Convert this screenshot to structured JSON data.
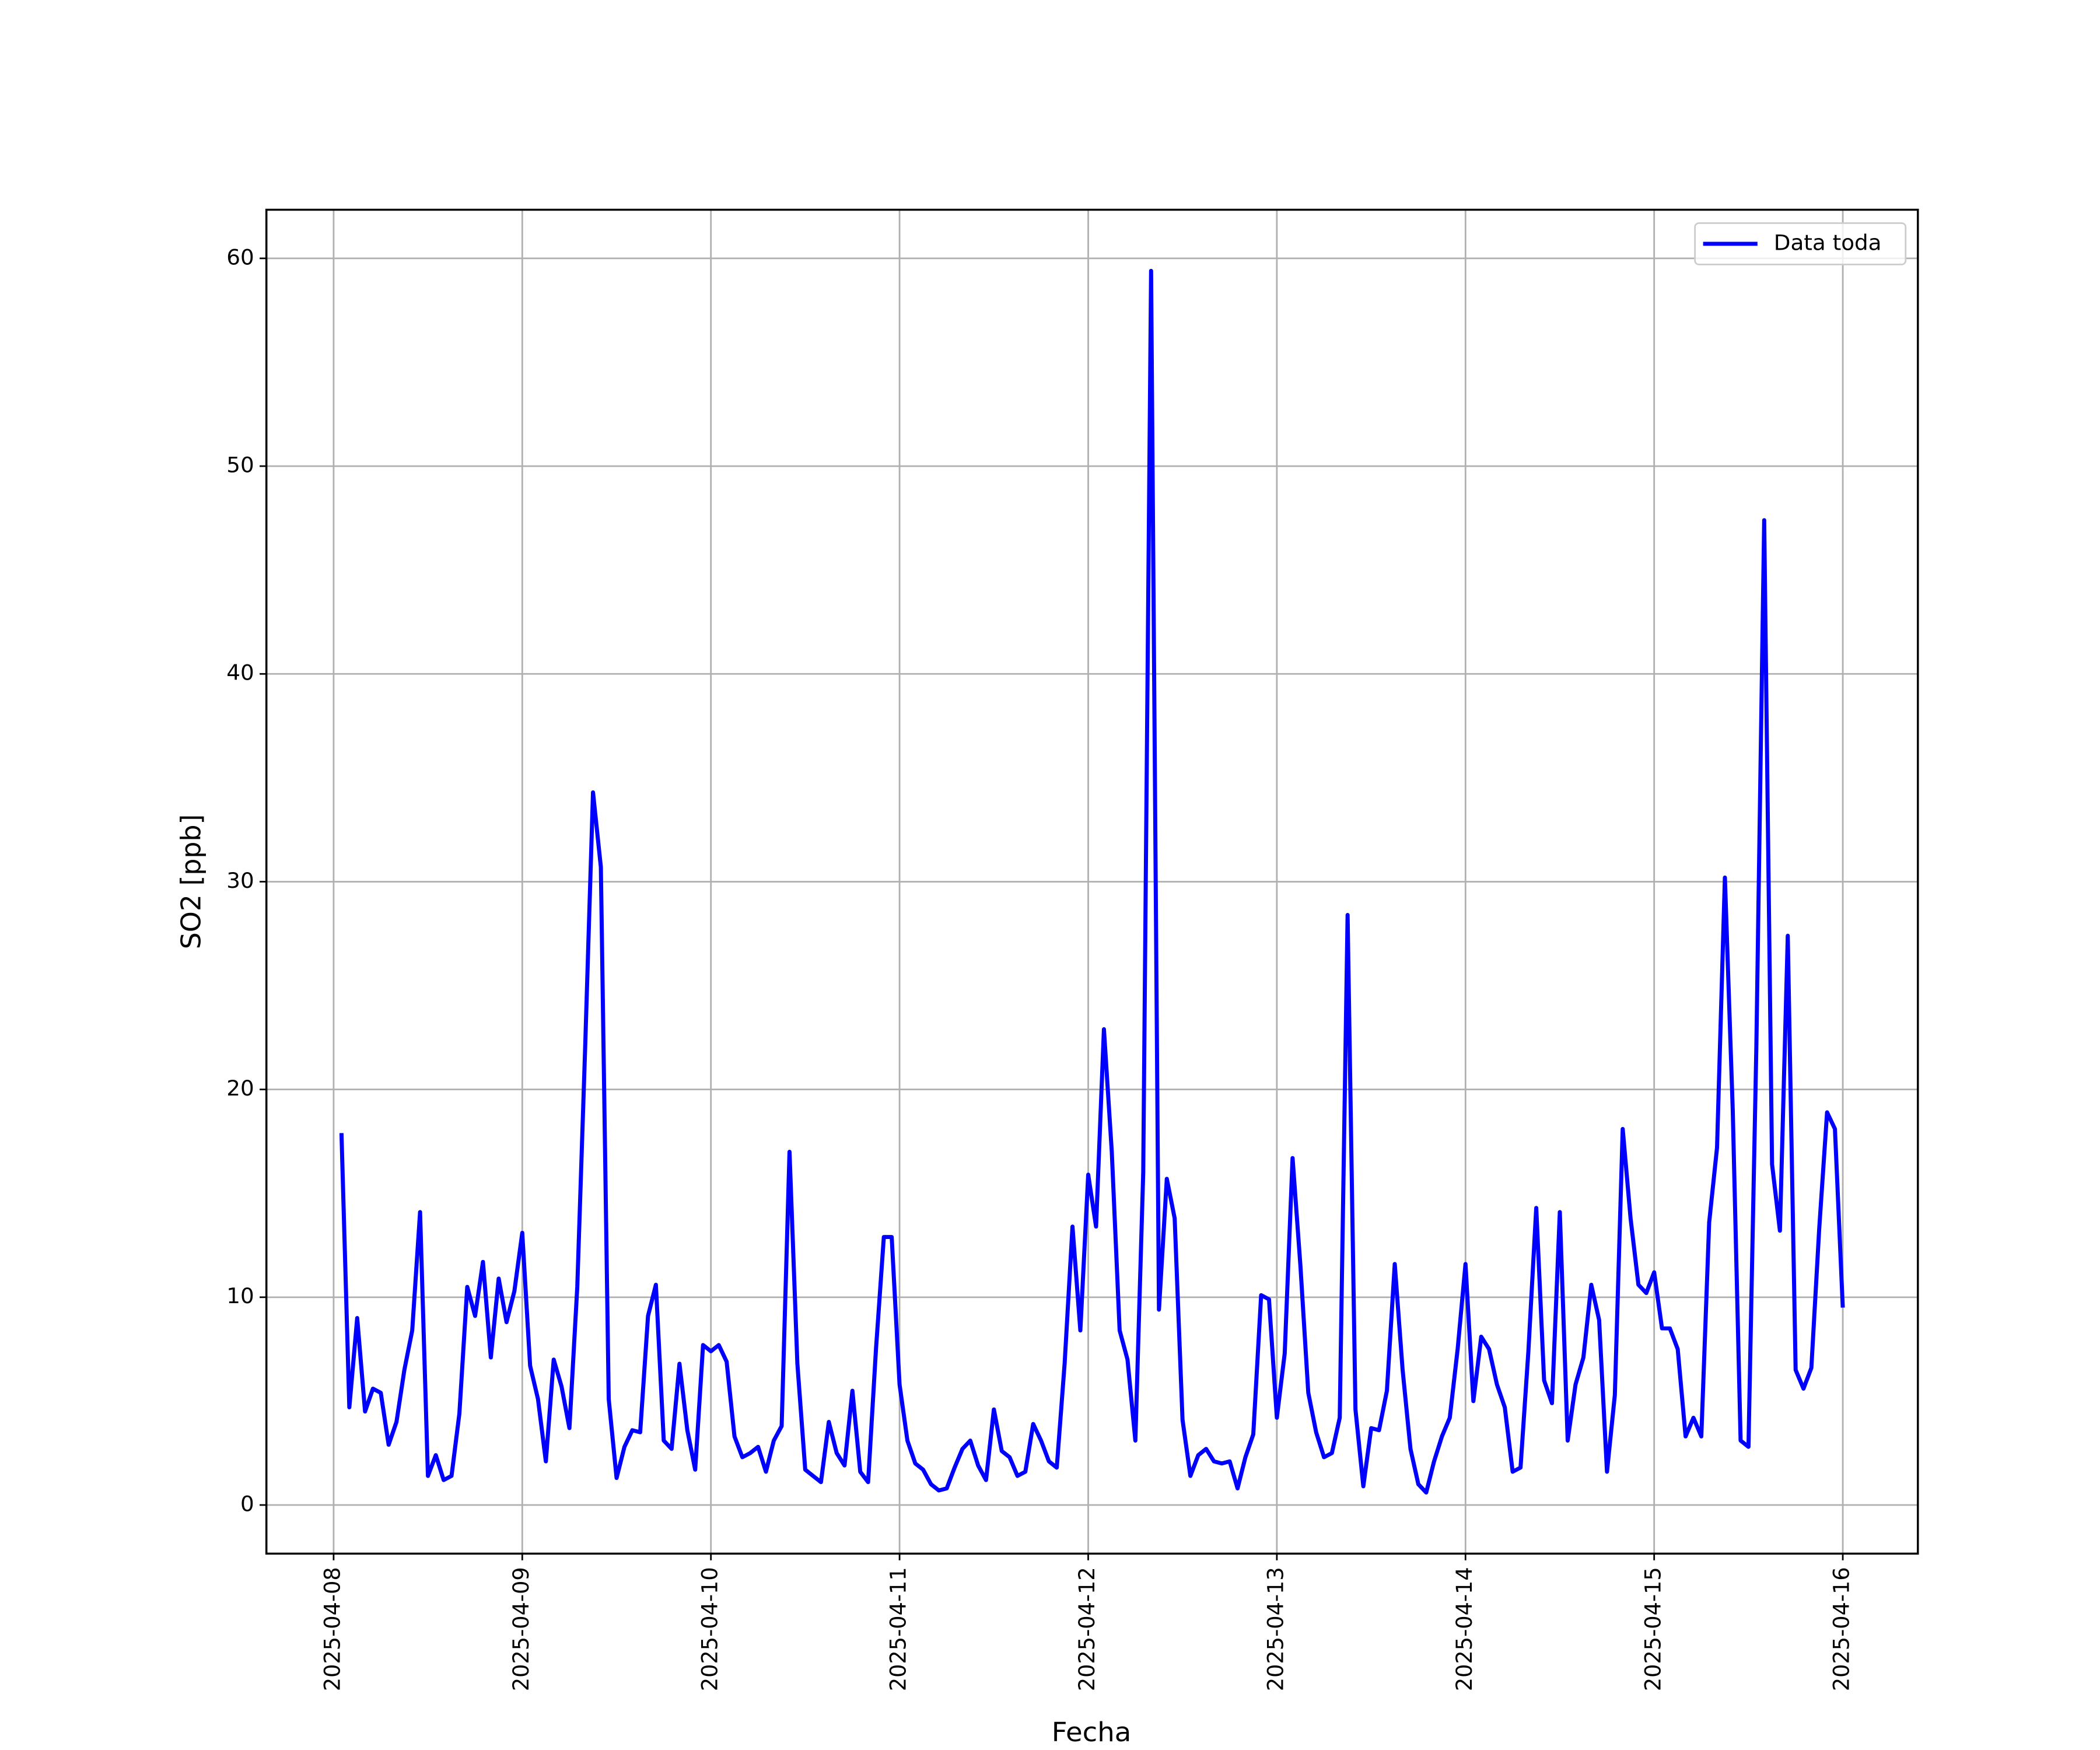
{
  "chart_data": {
    "type": "line",
    "xlabel": "Fecha",
    "ylabel": "SO2 [ppb]",
    "x": [
      "2025-04-08 01:00",
      "2025-04-08 02:00",
      "2025-04-08 03:00",
      "2025-04-08 04:00",
      "2025-04-08 05:00",
      "2025-04-08 06:00",
      "2025-04-08 07:00",
      "2025-04-08 08:00",
      "2025-04-08 09:00",
      "2025-04-08 10:00",
      "2025-04-08 11:00",
      "2025-04-08 12:00",
      "2025-04-08 13:00",
      "2025-04-08 14:00",
      "2025-04-08 15:00",
      "2025-04-08 16:00",
      "2025-04-08 17:00",
      "2025-04-08 18:00",
      "2025-04-08 19:00",
      "2025-04-08 20:00",
      "2025-04-08 21:00",
      "2025-04-08 22:00",
      "2025-04-08 23:00",
      "2025-04-09 00:00",
      "2025-04-09 01:00",
      "2025-04-09 02:00",
      "2025-04-09 03:00",
      "2025-04-09 04:00",
      "2025-04-09 05:00",
      "2025-04-09 06:00",
      "2025-04-09 07:00",
      "2025-04-09 08:00",
      "2025-04-09 09:00",
      "2025-04-09 10:00",
      "2025-04-09 11:00",
      "2025-04-09 12:00",
      "2025-04-09 13:00",
      "2025-04-09 14:00",
      "2025-04-09 15:00",
      "2025-04-09 16:00",
      "2025-04-09 17:00",
      "2025-04-09 18:00",
      "2025-04-09 19:00",
      "2025-04-09 20:00",
      "2025-04-09 21:00",
      "2025-04-09 22:00",
      "2025-04-09 23:00",
      "2025-04-10 00:00",
      "2025-04-10 01:00",
      "2025-04-10 02:00",
      "2025-04-10 03:00",
      "2025-04-10 04:00",
      "2025-04-10 05:00",
      "2025-04-10 06:00",
      "2025-04-10 07:00",
      "2025-04-10 08:00",
      "2025-04-10 09:00",
      "2025-04-10 10:00",
      "2025-04-10 11:00",
      "2025-04-10 12:00",
      "2025-04-10 13:00",
      "2025-04-10 14:00",
      "2025-04-10 15:00",
      "2025-04-10 16:00",
      "2025-04-10 17:00",
      "2025-04-10 18:00",
      "2025-04-10 19:00",
      "2025-04-10 20:00",
      "2025-04-10 21:00",
      "2025-04-10 22:00",
      "2025-04-10 23:00",
      "2025-04-11 00:00",
      "2025-04-11 01:00",
      "2025-04-11 02:00",
      "2025-04-11 03:00",
      "2025-04-11 04:00",
      "2025-04-11 05:00",
      "2025-04-11 06:00",
      "2025-04-11 07:00",
      "2025-04-11 08:00",
      "2025-04-11 09:00",
      "2025-04-11 10:00",
      "2025-04-11 11:00",
      "2025-04-11 12:00",
      "2025-04-11 13:00",
      "2025-04-11 14:00",
      "2025-04-11 15:00",
      "2025-04-11 16:00",
      "2025-04-11 17:00",
      "2025-04-11 18:00",
      "2025-04-11 19:00",
      "2025-04-11 20:00",
      "2025-04-11 21:00",
      "2025-04-11 22:00",
      "2025-04-11 23:00",
      "2025-04-12 00:00",
      "2025-04-12 01:00",
      "2025-04-12 02:00",
      "2025-04-12 03:00",
      "2025-04-12 04:00",
      "2025-04-12 05:00",
      "2025-04-12 06:00",
      "2025-04-12 07:00",
      "2025-04-12 08:00",
      "2025-04-12 09:00",
      "2025-04-12 10:00",
      "2025-04-12 11:00",
      "2025-04-12 12:00",
      "2025-04-12 13:00",
      "2025-04-12 14:00",
      "2025-04-12 15:00",
      "2025-04-12 16:00",
      "2025-04-12 17:00",
      "2025-04-12 18:00",
      "2025-04-12 19:00",
      "2025-04-12 20:00",
      "2025-04-12 21:00",
      "2025-04-12 22:00",
      "2025-04-12 23:00",
      "2025-04-13 00:00",
      "2025-04-13 01:00",
      "2025-04-13 02:00",
      "2025-04-13 03:00",
      "2025-04-13 04:00",
      "2025-04-13 05:00",
      "2025-04-13 06:00",
      "2025-04-13 07:00",
      "2025-04-13 08:00",
      "2025-04-13 09:00",
      "2025-04-13 10:00",
      "2025-04-13 11:00",
      "2025-04-13 12:00",
      "2025-04-13 13:00",
      "2025-04-13 14:00",
      "2025-04-13 15:00",
      "2025-04-13 16:00",
      "2025-04-13 17:00",
      "2025-04-13 18:00",
      "2025-04-13 19:00",
      "2025-04-13 20:00",
      "2025-04-13 21:00",
      "2025-04-13 22:00",
      "2025-04-13 23:00",
      "2025-04-14 00:00",
      "2025-04-14 01:00",
      "2025-04-14 02:00",
      "2025-04-14 03:00",
      "2025-04-14 04:00",
      "2025-04-14 05:00",
      "2025-04-14 06:00",
      "2025-04-14 07:00",
      "2025-04-14 08:00",
      "2025-04-14 09:00",
      "2025-04-14 10:00",
      "2025-04-14 11:00",
      "2025-04-14 12:00",
      "2025-04-14 13:00",
      "2025-04-14 14:00",
      "2025-04-14 15:00",
      "2025-04-14 16:00",
      "2025-04-14 17:00",
      "2025-04-14 18:00",
      "2025-04-14 19:00",
      "2025-04-14 20:00",
      "2025-04-14 21:00",
      "2025-04-14 22:00",
      "2025-04-14 23:00",
      "2025-04-15 00:00",
      "2025-04-15 01:00",
      "2025-04-15 02:00",
      "2025-04-15 03:00",
      "2025-04-15 04:00",
      "2025-04-15 05:00",
      "2025-04-15 06:00",
      "2025-04-15 07:00",
      "2025-04-15 08:00",
      "2025-04-15 09:00",
      "2025-04-15 10:00",
      "2025-04-15 11:00",
      "2025-04-15 12:00",
      "2025-04-15 13:00",
      "2025-04-15 14:00",
      "2025-04-15 15:00",
      "2025-04-15 16:00",
      "2025-04-15 17:00",
      "2025-04-15 18:00",
      "2025-04-15 19:00",
      "2025-04-15 20:00",
      "2025-04-15 21:00",
      "2025-04-15 22:00",
      "2025-04-15 23:00",
      "2025-04-16 00:00"
    ],
    "series": [
      {
        "name": "Data toda",
        "color": "#0000ff",
        "values": [
          17.9,
          4.7,
          9.0,
          4.5,
          5.6,
          5.4,
          2.9,
          4.0,
          6.5,
          8.4,
          14.1,
          1.4,
          2.4,
          1.2,
          1.4,
          4.4,
          10.5,
          9.1,
          11.7,
          7.1,
          10.9,
          8.8,
          10.3,
          13.1,
          6.7,
          5.1,
          2.1,
          7.0,
          5.7,
          3.7,
          10.5,
          22,
          34.3,
          30.7,
          5.1,
          1.3,
          2.8,
          3.6,
          3.5,
          9.1,
          10.6,
          3.1,
          2.7,
          6.8,
          3.6,
          1.7,
          7.7,
          7.4,
          7.7,
          6.9,
          3.3,
          2.3,
          2.5,
          2.8,
          1.6,
          3.1,
          3.8,
          17.0,
          6.8,
          1.7,
          1.4,
          1.1,
          4.0,
          2.5,
          1.9,
          5.5,
          1.6,
          1.1,
          7.5,
          12.9,
          12.9,
          5.8,
          3.1,
          2.0,
          1.7,
          1.0,
          0.7,
          0.8,
          1.8,
          2.7,
          3.1,
          1.9,
          1.2,
          4.6,
          2.6,
          2.3,
          1.4,
          1.6,
          3.9,
          3.1,
          2.1,
          1.8,
          6.8,
          13.4,
          8.4,
          15.9,
          13.4,
          22.9,
          17,
          8.4,
          7.0,
          3.1,
          16,
          59.4,
          9.4,
          15.7,
          13.8,
          4.1,
          1.4,
          2.4,
          2.7,
          2.1,
          2.0,
          2.1,
          0.8,
          2.3,
          3.4,
          10.1,
          9.9,
          4.2,
          7.3,
          16.7,
          11.5,
          5.4,
          3.5,
          2.3,
          2.5,
          4.2,
          28.4,
          4.6,
          0.9,
          3.7,
          3.6,
          5.5,
          11.6,
          6.5,
          2.7,
          1.0,
          0.6,
          2.1,
          3.3,
          4.2,
          7.5,
          11.6,
          5.0,
          8.1,
          7.5,
          5.8,
          4.7,
          1.6,
          1.8,
          7.4,
          14.3,
          6.0,
          4.9,
          14.1,
          3.1,
          5.8,
          7.1,
          10.6,
          8.9,
          1.6,
          5.3,
          18.1,
          13.8,
          10.6,
          10.2,
          11.2,
          8.5,
          8.5,
          7.5,
          3.3,
          4.2,
          3.3,
          13.6,
          17.2,
          30.2,
          19,
          3.1,
          2.8,
          22,
          47.4,
          16.4,
          13.2,
          27.4,
          6.5,
          5.6,
          6.6,
          13.3,
          18.9,
          18.1,
          9.5
        ]
      }
    ],
    "xlim": [
      "2025-04-07 15:27",
      "2025-04-16 09:33"
    ],
    "xticks": [
      "2025-04-08",
      "2025-04-09",
      "2025-04-10",
      "2025-04-11",
      "2025-04-12",
      "2025-04-13",
      "2025-04-14",
      "2025-04-15",
      "2025-04-16"
    ],
    "ylim": [
      -2.34,
      62.34
    ],
    "yticks": [
      0,
      10,
      20,
      30,
      40,
      50,
      60
    ],
    "grid": true,
    "legend": "upper right"
  }
}
